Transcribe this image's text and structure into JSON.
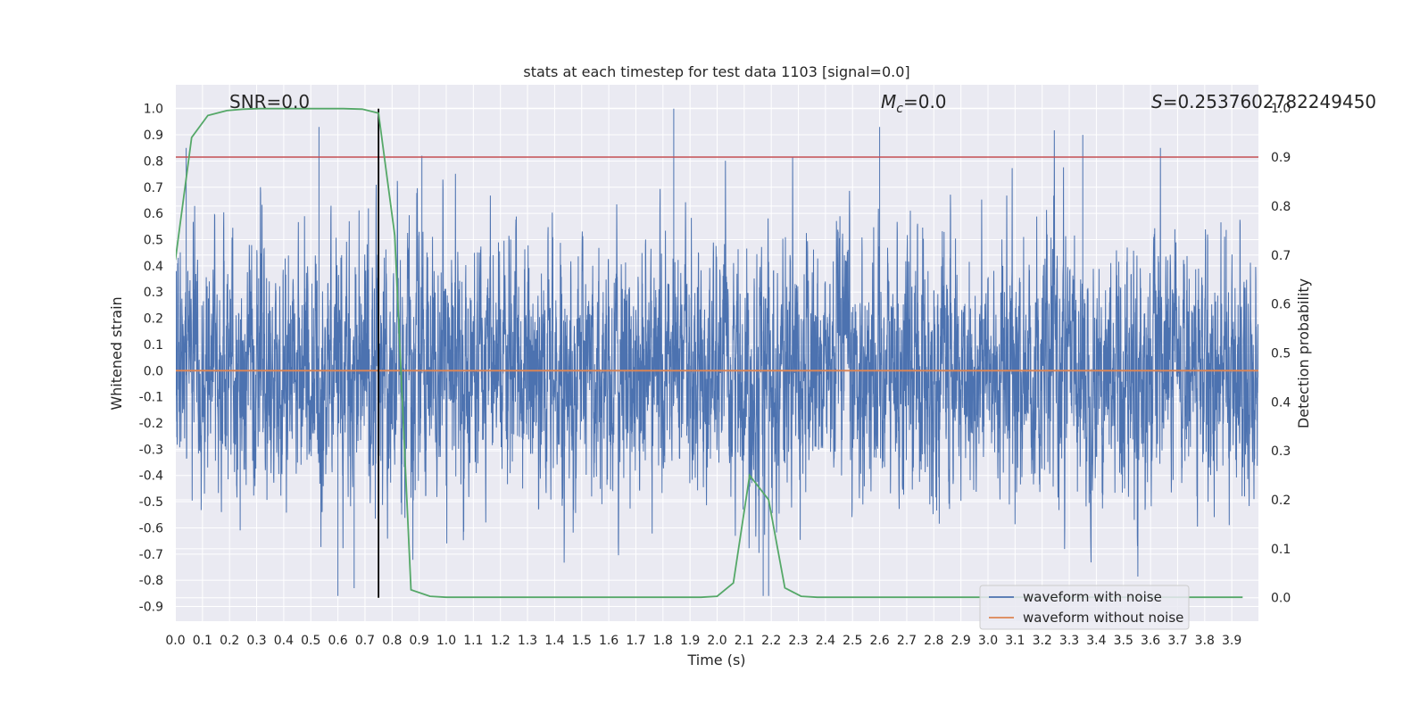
{
  "title": "stats at each timestep for test data 1103 [signal=0.0]",
  "colors": {
    "background": "#eaeaf2",
    "grid": "#ffffff",
    "noisy": "#4c72b0",
    "clean": "#dd8452",
    "probability": "#55a868",
    "threshold": "#c44e52",
    "marker": "#000000"
  },
  "annotations": {
    "snr": "SNR=0.0",
    "mc_symbol": "M",
    "mc_subscript": "c",
    "mc_value": "=0.0",
    "s_symbol": "S",
    "s_value": "=0.2537602782249450"
  },
  "chart_data": {
    "type": "line",
    "title": "stats at each timestep for test data 1103 [signal=0.0]",
    "xlabel": "Time (s)",
    "ylabel": "Whitened strain",
    "ylabel_right": "Detection probability",
    "xlim": [
      0.0,
      4.0
    ],
    "ylim_left": [
      -0.955,
      1.09
    ],
    "ylim_right": [
      -0.05,
      1.0
    ],
    "x_ticks": [
      "0.0",
      "0.1",
      "0.2",
      "0.3",
      "0.4",
      "0.5",
      "0.6",
      "0.7",
      "0.8",
      "0.9",
      "1.0",
      "1.1",
      "1.2",
      "1.3",
      "1.4",
      "1.5",
      "1.6",
      "1.7",
      "1.8",
      "1.9",
      "2.0",
      "2.1",
      "2.2",
      "2.3",
      "2.4",
      "2.5",
      "2.6",
      "2.7",
      "2.8",
      "2.9",
      "3.0",
      "3.1",
      "3.2",
      "3.3",
      "3.4",
      "3.5",
      "3.6",
      "3.7",
      "3.8",
      "3.9"
    ],
    "y_ticks_left": [
      "1.0",
      "0.9",
      "0.8",
      "0.7",
      "0.6",
      "0.5",
      "0.4",
      "0.3",
      "0.2",
      "0.1",
      "0.0",
      "-0.1",
      "-0.2",
      "-0.3",
      "-0.4",
      "-0.5",
      "-0.6",
      "-0.7",
      "-0.8",
      "-0.9"
    ],
    "y_ticks_right": [
      "1.0",
      "0.9",
      "0.8",
      "0.7",
      "0.6",
      "0.5",
      "0.4",
      "0.3",
      "0.2",
      "0.1",
      "0.0"
    ],
    "legend": {
      "placement": "lower-right",
      "entries": [
        "waveform with noise",
        "waveform without noise"
      ]
    },
    "series": [
      {
        "name": "waveform with noise",
        "axis": "left",
        "description_values": "dense whitened noise, roughly within [-0.86, 1.0]",
        "sample_rate_hz": 2048,
        "approx_peaks": [
          [
            0.04,
            0.85
          ],
          [
            0.53,
            0.93
          ],
          [
            0.91,
            0.82
          ],
          [
            1.84,
            1.0
          ],
          [
            2.6,
            0.93
          ],
          [
            3.35,
            0.9
          ],
          [
            0.6,
            -0.86
          ],
          [
            0.66,
            -0.83
          ],
          [
            2.17,
            -0.86
          ],
          [
            2.19,
            -0.86
          ]
        ]
      },
      {
        "name": "waveform without noise",
        "axis": "left",
        "x": [
          0.0,
          4.0
        ],
        "y": [
          0.0,
          0.0
        ]
      },
      {
        "axis": "right",
        "x": [
          0.0,
          0.06,
          0.12,
          0.19,
          0.25,
          0.31,
          0.37,
          0.44,
          0.5,
          0.56,
          0.62,
          0.69,
          0.75,
          0.81,
          0.87,
          0.94,
          1.0,
          1.06,
          1.12,
          1.19,
          1.25,
          1.31,
          1.37,
          1.44,
          1.5,
          1.56,
          1.62,
          1.69,
          1.75,
          1.81,
          1.87,
          1.94,
          2.0,
          2.06,
          2.12,
          2.19,
          2.25,
          2.31,
          2.37,
          2.44,
          2.5,
          2.56,
          2.62,
          2.69,
          2.75,
          2.81,
          2.87,
          2.94,
          3.0,
          3.06,
          3.12,
          3.19,
          3.25,
          3.31,
          3.37,
          3.44,
          3.5,
          3.56,
          3.62,
          3.69,
          3.75,
          3.81,
          3.87,
          3.94
        ],
        "y": [
          0.69,
          0.94,
          0.985,
          0.995,
          0.998,
          0.999,
          0.999,
          0.999,
          0.999,
          0.999,
          0.999,
          0.998,
          0.99,
          0.74,
          0.016,
          0.003,
          0.001,
          0.001,
          0.001,
          0.001,
          0.001,
          0.001,
          0.001,
          0.001,
          0.001,
          0.001,
          0.001,
          0.001,
          0.001,
          0.001,
          0.001,
          0.001,
          0.003,
          0.03,
          0.25,
          0.2,
          0.02,
          0.003,
          0.001,
          0.001,
          0.001,
          0.001,
          0.001,
          0.001,
          0.001,
          0.001,
          0.001,
          0.001,
          0.001,
          0.001,
          0.001,
          0.001,
          0.001,
          0.001,
          0.001,
          0.001,
          0.001,
          0.001,
          0.001,
          0.001,
          0.001,
          0.001,
          0.001,
          0.001
        ]
      }
    ],
    "threshold_right": 0.9,
    "marker_x": 0.75
  }
}
